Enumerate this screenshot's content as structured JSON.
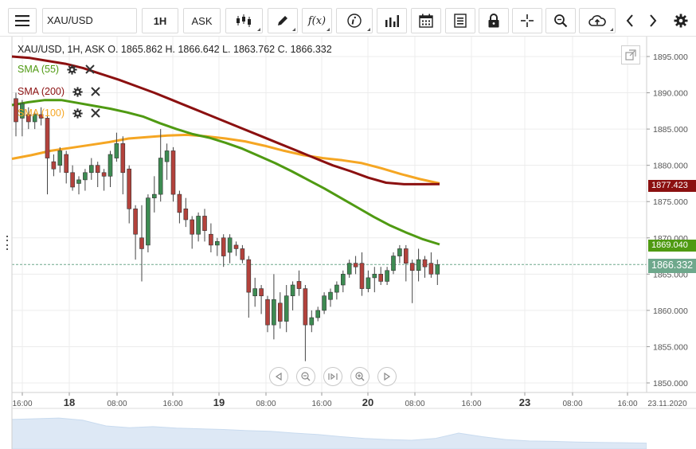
{
  "toolbar": {
    "menu_icon": "hamburger-menu-icon",
    "symbol": "XAU/USD",
    "timeframe": "1H",
    "price_side": "ASK",
    "icons": [
      "candlestick-type-icon",
      "draw-pencil-icon",
      "function-fx-icon",
      "info-icon",
      "bar-chart-icon",
      "calendar-icon",
      "report-icon",
      "lock-icon",
      "crosshair-icon",
      "zoom-search-icon",
      "cloud-upload-icon",
      "chevron-left-icon",
      "chevron-right-icon",
      "gear-icon"
    ],
    "fx_label": "f(x)"
  },
  "ohlc_header": "XAU/USD, 1H, ASK   O. 1865.862  H. 1866.642  L. 1863.762  C. 1866.332",
  "indicators": [
    {
      "name": "SMA (55)",
      "color": "#4f9a12"
    },
    {
      "name": "SMA (200)",
      "color": "#8b1010"
    },
    {
      "name": "SMA (100)",
      "color": "#f5a623"
    }
  ],
  "price_tags": [
    {
      "label": "1877.423",
      "color": "#8b1010"
    },
    {
      "label": "1869.040",
      "color": "#4f9a12"
    },
    {
      "label": "1866.332",
      "color": "#6ea88c"
    }
  ],
  "colors": {
    "bull": "#3d8b52",
    "bear": "#b3423c",
    "grid": "#ececec",
    "current_line": "#6ea88c",
    "navigator_area": "#dde8f5"
  },
  "chart_data": {
    "type": "candlestick",
    "title": "XAU/USD, 1H, ASK",
    "ylim": [
      1847.5,
      1897.5
    ],
    "y_ticks": [
      "1895.000",
      "1890.000",
      "1885.000",
      "1880.000",
      "1875.000",
      "1870.000",
      "1865.000",
      "1860.000",
      "1855.000",
      "1850.000"
    ],
    "x_ticks": [
      {
        "label": "16:00",
        "bold": false
      },
      {
        "label": "18",
        "bold": true
      },
      {
        "label": "08:00",
        "bold": false
      },
      {
        "label": "16:00",
        "bold": false
      },
      {
        "label": "19",
        "bold": true
      },
      {
        "label": "08:00",
        "bold": false
      },
      {
        "label": "16:00",
        "bold": false
      },
      {
        "label": "20",
        "bold": true
      },
      {
        "label": "08:00",
        "bold": false
      },
      {
        "label": "16:00",
        "bold": false
      },
      {
        "label": "23",
        "bold": true
      },
      {
        "label": "08:00",
        "bold": false
      },
      {
        "label": "16:00",
        "bold": false
      },
      {
        "label": "23.11.2020",
        "bold": false
      }
    ],
    "current_price": 1866.332,
    "candles": [
      [
        1889.2,
        1890.0,
        1884.0,
        1886.0
      ],
      [
        1886.5,
        1889.0,
        1884.0,
        1888.5
      ],
      [
        1887.0,
        1888.0,
        1885.0,
        1886.0
      ],
      [
        1886.0,
        1887.5,
        1885.0,
        1887.0
      ],
      [
        1887.0,
        1888.0,
        1885.5,
        1886.5
      ],
      [
        1886.5,
        1887.5,
        1876.0,
        1881.0
      ],
      [
        1880.5,
        1881.5,
        1878.5,
        1879.5
      ],
      [
        1880.0,
        1882.5,
        1879.0,
        1882.0
      ],
      [
        1881.5,
        1882.0,
        1877.5,
        1879.0
      ],
      [
        1879.0,
        1880.0,
        1876.5,
        1877.0
      ],
      [
        1877.5,
        1878.5,
        1876.0,
        1878.0
      ],
      [
        1878.0,
        1879.5,
        1876.5,
        1879.0
      ],
      [
        1879.0,
        1881.0,
        1878.0,
        1880.0
      ],
      [
        1880.0,
        1880.5,
        1877.0,
        1879.0
      ],
      [
        1879.0,
        1879.5,
        1876.5,
        1878.5
      ],
      [
        1878.5,
        1882.0,
        1877.0,
        1881.5
      ],
      [
        1881.0,
        1884.5,
        1880.5,
        1883.0
      ],
      [
        1883.0,
        1884.0,
        1876.0,
        1879.0
      ],
      [
        1879.5,
        1880.0,
        1872.0,
        1874.0
      ],
      [
        1874.0,
        1874.5,
        1867.0,
        1870.5
      ],
      [
        1870.0,
        1874.5,
        1864.0,
        1868.5
      ],
      [
        1869.0,
        1876.0,
        1868.0,
        1875.5
      ],
      [
        1875.5,
        1878.5,
        1873.5,
        1876.0
      ],
      [
        1876.0,
        1885.0,
        1875.0,
        1881.0
      ],
      [
        1880.5,
        1883.0,
        1878.0,
        1882.0
      ],
      [
        1882.0,
        1882.5,
        1875.0,
        1876.0
      ],
      [
        1876.0,
        1876.5,
        1872.0,
        1873.5
      ],
      [
        1874.0,
        1875.5,
        1871.5,
        1872.5
      ],
      [
        1872.5,
        1873.0,
        1868.5,
        1870.5
      ],
      [
        1870.5,
        1873.5,
        1869.5,
        1873.0
      ],
      [
        1873.0,
        1874.0,
        1869.5,
        1871.0
      ],
      [
        1870.5,
        1872.0,
        1868.0,
        1869.0
      ],
      [
        1869.0,
        1870.0,
        1867.5,
        1869.5
      ],
      [
        1870.0,
        1870.5,
        1866.0,
        1867.5
      ],
      [
        1868.0,
        1870.5,
        1866.5,
        1870.0
      ],
      [
        1869.0,
        1869.5,
        1867.5,
        1868.5
      ],
      [
        1868.5,
        1869.0,
        1866.5,
        1867.0
      ],
      [
        1867.0,
        1867.5,
        1859.0,
        1862.5
      ],
      [
        1862.0,
        1864.5,
        1860.5,
        1863.0
      ],
      [
        1863.0,
        1863.5,
        1859.5,
        1862.0
      ],
      [
        1861.5,
        1862.0,
        1857.0,
        1858.0
      ],
      [
        1858.0,
        1865.0,
        1856.0,
        1861.5
      ],
      [
        1861.0,
        1862.5,
        1857.5,
        1858.5
      ],
      [
        1858.5,
        1863.5,
        1857.0,
        1862.0
      ],
      [
        1862.0,
        1864.0,
        1860.0,
        1863.5
      ],
      [
        1864.0,
        1865.5,
        1862.0,
        1863.0
      ],
      [
        1863.0,
        1863.5,
        1853.0,
        1858.0
      ],
      [
        1858.0,
        1860.0,
        1857.0,
        1859.0
      ],
      [
        1859.0,
        1860.5,
        1858.5,
        1860.0
      ],
      [
        1860.0,
        1862.5,
        1859.5,
        1862.0
      ],
      [
        1861.5,
        1863.0,
        1860.5,
        1862.5
      ],
      [
        1862.5,
        1864.0,
        1861.5,
        1863.5
      ],
      [
        1863.5,
        1865.5,
        1862.5,
        1865.0
      ],
      [
        1865.0,
        1867.0,
        1864.5,
        1866.5
      ],
      [
        1866.5,
        1867.5,
        1865.0,
        1866.0
      ],
      [
        1866.5,
        1868.0,
        1862.0,
        1863.0
      ],
      [
        1863.0,
        1865.5,
        1862.5,
        1864.5
      ],
      [
        1864.5,
        1866.0,
        1862.5,
        1865.0
      ],
      [
        1865.0,
        1866.0,
        1863.5,
        1864.0
      ],
      [
        1864.0,
        1866.0,
        1863.5,
        1865.5
      ],
      [
        1865.5,
        1868.0,
        1865.0,
        1867.5
      ],
      [
        1867.5,
        1869.0,
        1866.5,
        1868.5
      ],
      [
        1868.5,
        1869.0,
        1864.0,
        1866.5
      ],
      [
        1866.5,
        1867.0,
        1861.0,
        1865.5
      ],
      [
        1865.5,
        1868.5,
        1864.0,
        1867.0
      ],
      [
        1867.0,
        1867.5,
        1864.5,
        1866.0
      ],
      [
        1866.5,
        1868.0,
        1864.5,
        1865.0
      ],
      [
        1865.0,
        1867.0,
        1863.5,
        1866.3
      ]
    ],
    "sma55": [
      1888.3,
      1888.7,
      1889.0,
      1889.0,
      1888.6,
      1888.2,
      1887.8,
      1887.3,
      1886.7,
      1885.8,
      1885.0,
      1884.3,
      1883.8,
      1883.1,
      1882.3,
      1881.3,
      1880.3,
      1879.2,
      1878.0,
      1876.8,
      1875.5,
      1874.2,
      1872.9,
      1871.7,
      1870.7,
      1869.8,
      1869.1
    ],
    "sma100": [
      1880.9,
      1881.4,
      1882.0,
      1882.4,
      1882.8,
      1883.2,
      1883.7,
      1883.9,
      1884.1,
      1884.2,
      1884.0,
      1883.7,
      1883.3,
      1882.7,
      1882.0,
      1881.4,
      1881.0,
      1880.7,
      1880.3,
      1879.6,
      1878.8,
      1878.1,
      1877.5
    ],
    "sma200": [
      1895.0,
      1894.8,
      1894.4,
      1894.0,
      1893.4,
      1892.6,
      1891.8,
      1890.9,
      1890.0,
      1889.0,
      1888.0,
      1887.0,
      1886.0,
      1885.0,
      1884.0,
      1883.0,
      1882.0,
      1881.0,
      1880.0,
      1879.2,
      1878.3,
      1877.6,
      1877.4,
      1877.4,
      1877.42
    ]
  },
  "navigator": {
    "heights": [
      0.78,
      0.8,
      0.82,
      0.76,
      0.6,
      0.55,
      0.58,
      0.54,
      0.52,
      0.5,
      0.47,
      0.45,
      0.4,
      0.36,
      0.3,
      0.25,
      0.22,
      0.2,
      0.25,
      0.4,
      0.3,
      0.22,
      0.18,
      0.17,
      0.15,
      0.14,
      0.13,
      0.12
    ]
  }
}
